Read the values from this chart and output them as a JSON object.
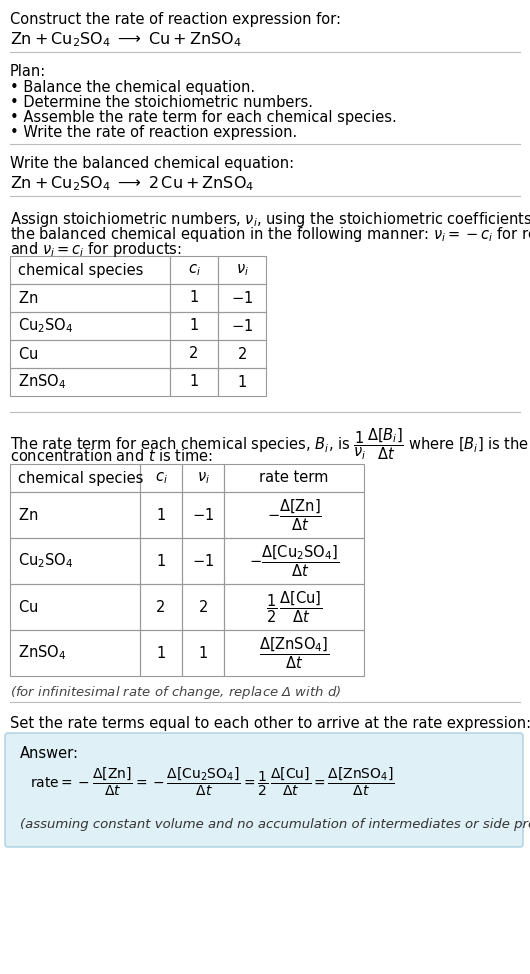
{
  "bg_color": "#ffffff",
  "font_size": 10.5,
  "font_size_small": 9.5,
  "font_size_reaction": 11.5,
  "sections": {
    "title": "Construct the rate of reaction expression for:",
    "rxn_unbalanced_latex": "$\\mathrm{Zn + Cu_2SO_4 \\;\\longrightarrow\\; Cu + ZnSO_4}$",
    "plan_header": "Plan:",
    "plan_items": [
      "• Balance the chemical equation.",
      "• Determine the stoichiometric numbers.",
      "• Assemble the rate term for each chemical species.",
      "• Write the rate of reaction expression."
    ],
    "balanced_header": "Write the balanced chemical equation:",
    "rxn_balanced_latex": "$\\mathrm{Zn + Cu_2SO_4 \\;\\longrightarrow\\; 2\\,Cu + ZnSO_4}$",
    "stoich_line1": "Assign stoichiometric numbers, $\\nu_i$, using the stoichiometric coefficients, $c_i$, from",
    "stoich_line2": "the balanced chemical equation in the following manner: $\\nu_i = -c_i$ for reactants",
    "stoich_line3": "and $\\nu_i = c_i$ for products:",
    "table1_col_labels": [
      "chemical species",
      "$c_i$",
      "$\\nu_i$"
    ],
    "table1_rows": [
      [
        "$\\mathrm{Zn}$",
        "1",
        "$-1$"
      ],
      [
        "$\\mathrm{Cu_2SO_4}$",
        "1",
        "$-1$"
      ],
      [
        "$\\mathrm{Cu}$",
        "2",
        "$2$"
      ],
      [
        "$\\mathrm{ZnSO_4}$",
        "1",
        "$1$"
      ]
    ],
    "rate_line1": "The rate term for each chemical species, $B_i$, is $\\dfrac{1}{\\nu_i}\\dfrac{\\Delta[B_i]}{\\Delta t}$ where $[B_i]$ is the amount",
    "rate_line2": "concentration and $t$ is time:",
    "table2_col_labels": [
      "chemical species",
      "$c_i$",
      "$\\nu_i$",
      "rate term"
    ],
    "table2_rows": [
      [
        "$\\mathrm{Zn}$",
        "1",
        "$-1$",
        "$-\\dfrac{\\Delta[\\mathrm{Zn}]}{\\Delta t}$"
      ],
      [
        "$\\mathrm{Cu_2SO_4}$",
        "1",
        "$-1$",
        "$-\\dfrac{\\Delta[\\mathrm{Cu_2SO_4}]}{\\Delta t}$"
      ],
      [
        "$\\mathrm{Cu}$",
        "2",
        "$2$",
        "$\\dfrac{1}{2}\\,\\dfrac{\\Delta[\\mathrm{Cu}]}{\\Delta t}$"
      ],
      [
        "$\\mathrm{ZnSO_4}$",
        "1",
        "$1$",
        "$\\dfrac{\\Delta[\\mathrm{ZnSO_4}]}{\\Delta t}$"
      ]
    ],
    "infinitesimal": "(for infinitesimal rate of change, replace Δ with $d$)",
    "set_equal": "Set the rate terms equal to each other to arrive at the rate expression:",
    "answer_label": "Answer:",
    "answer_rate": "$\\mathrm{rate} = -\\dfrac{\\Delta[\\mathrm{Zn}]}{\\Delta t} = -\\dfrac{\\Delta[\\mathrm{Cu_2SO_4}]}{\\Delta t} = \\dfrac{1}{2}\\,\\dfrac{\\Delta[\\mathrm{Cu}]}{\\Delta t} = \\dfrac{\\Delta[\\mathrm{ZnSO_4}]}{\\Delta t}$",
    "answer_note": "(assuming constant volume and no accumulation of intermediates or side products)"
  },
  "answer_bg": "#dff0f7",
  "answer_border": "#aacfe0",
  "line_color": "#bbbbbb",
  "table_border_color": "#999999"
}
